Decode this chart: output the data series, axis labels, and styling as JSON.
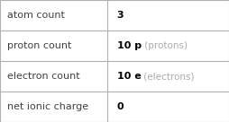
{
  "rows": [
    {
      "label": "atom count",
      "bold_val": "3",
      "gray_val": ""
    },
    {
      "label": "proton count",
      "bold_val": "10 p",
      "gray_val": " (protons)"
    },
    {
      "label": "electron count",
      "bold_val": "10 e",
      "gray_val": " (electrons)"
    },
    {
      "label": "net ionic charge",
      "bold_val": "0",
      "gray_val": ""
    }
  ],
  "col_split": 0.47,
  "background_color": "#ffffff",
  "border_color": "#b0b0b0",
  "label_color": "#404040",
  "bold_color": "#000000",
  "gray_color": "#aaaaaa",
  "label_fontsize": 8.0,
  "value_fontsize": 8.0,
  "gray_fontsize": 7.5,
  "fig_width": 2.54,
  "fig_height": 1.36,
  "dpi": 100
}
